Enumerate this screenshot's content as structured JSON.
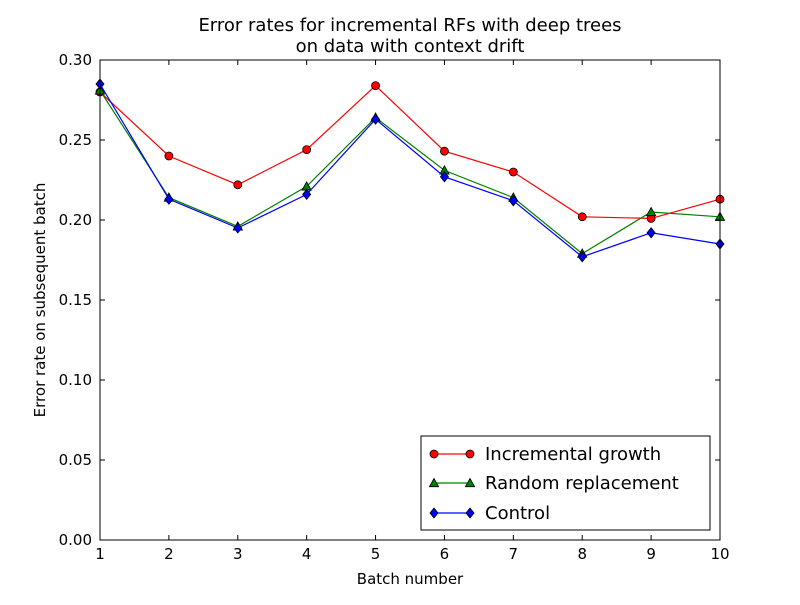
{
  "chart_data": {
    "type": "line",
    "title": "Error rates for incremental RFs with deep trees",
    "subtitle": "on data with context drift",
    "xlabel": "Batch number",
    "ylabel": "Error rate on subsequent batch",
    "x": [
      1,
      2,
      3,
      4,
      5,
      6,
      7,
      8,
      9,
      10
    ],
    "xlim": [
      1,
      10
    ],
    "ylim": [
      0,
      0.3
    ],
    "xticks": [
      "1",
      "2",
      "3",
      "4",
      "5",
      "6",
      "7",
      "8",
      "9",
      "10"
    ],
    "yticks": [
      "0.00",
      "0.05",
      "0.10",
      "0.15",
      "0.20",
      "0.25",
      "0.30"
    ],
    "grid": false,
    "legend_position": "bottom-right",
    "series": [
      {
        "name": "Incremental growth",
        "color": "#ff0000",
        "marker": "circle",
        "values": [
          0.28,
          0.24,
          0.222,
          0.244,
          0.284,
          0.243,
          0.23,
          0.202,
          0.201,
          0.213
        ]
      },
      {
        "name": "Random replacement",
        "color": "#008000",
        "marker": "triangle",
        "values": [
          0.281,
          0.214,
          0.196,
          0.221,
          0.264,
          0.231,
          0.214,
          0.179,
          0.205,
          0.202
        ]
      },
      {
        "name": "Control",
        "color": "#0000ff",
        "marker": "diamond",
        "values": [
          0.285,
          0.213,
          0.195,
          0.216,
          0.263,
          0.227,
          0.212,
          0.177,
          0.192,
          0.185
        ]
      }
    ]
  }
}
